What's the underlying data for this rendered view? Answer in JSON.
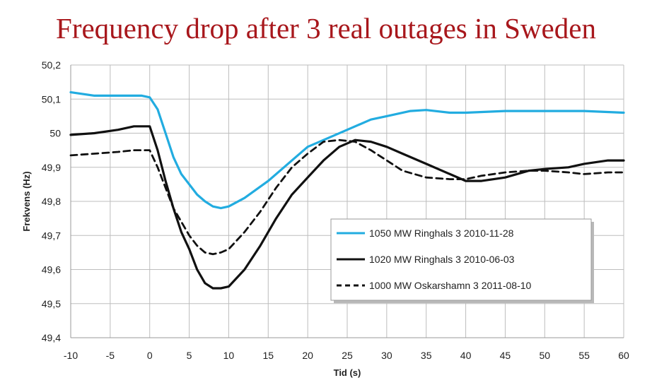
{
  "chart_data": {
    "type": "line",
    "title": "Frequency drop after 3 real outages in Sweden",
    "xlabel": "Tid (s)",
    "ylabel": "Frekvens (Hz)",
    "xlim": [
      -10,
      60
    ],
    "ylim": [
      49.4,
      50.2
    ],
    "x_ticks": [
      -10,
      -5,
      0,
      5,
      10,
      15,
      20,
      25,
      30,
      35,
      40,
      45,
      50,
      55,
      60
    ],
    "x_tick_labels": [
      "-10",
      "-5",
      "0",
      "5",
      "10",
      "15",
      "20",
      "25",
      "30",
      "35",
      "40",
      "45",
      "50",
      "55",
      "60"
    ],
    "y_ticks": [
      49.4,
      49.5,
      49.6,
      49.7,
      49.8,
      49.9,
      50.0,
      50.1,
      50.2
    ],
    "y_tick_labels": [
      "49,4",
      "49,5",
      "49,6",
      "49,7",
      "49,8",
      "49,9",
      "50",
      "50,1",
      "50,2"
    ],
    "grid": true,
    "legend_position": "bottom-right",
    "series": [
      {
        "name": "1050 MW Ringhals 3 2010-11-28",
        "color": "#22ace0",
        "style": "solid",
        "points": [
          [
            -10,
            50.12
          ],
          [
            -7,
            50.11
          ],
          [
            -3,
            50.11
          ],
          [
            -1,
            50.11
          ],
          [
            0,
            50.105
          ],
          [
            1,
            50.07
          ],
          [
            2,
            50.0
          ],
          [
            3,
            49.93
          ],
          [
            4,
            49.88
          ],
          [
            5,
            49.85
          ],
          [
            6,
            49.82
          ],
          [
            7,
            49.8
          ],
          [
            8,
            49.785
          ],
          [
            9,
            49.78
          ],
          [
            10,
            49.785
          ],
          [
            12,
            49.81
          ],
          [
            15,
            49.86
          ],
          [
            18,
            49.92
          ],
          [
            20,
            49.96
          ],
          [
            22,
            49.98
          ],
          [
            25,
            50.01
          ],
          [
            28,
            50.04
          ],
          [
            30,
            50.05
          ],
          [
            33,
            50.065
          ],
          [
            35,
            50.068
          ],
          [
            38,
            50.06
          ],
          [
            40,
            50.06
          ],
          [
            45,
            50.065
          ],
          [
            50,
            50.065
          ],
          [
            55,
            50.065
          ],
          [
            60,
            50.06
          ]
        ]
      },
      {
        "name": "1020 MW Ringhals 3 2010-06-03",
        "color": "#111111",
        "style": "solid",
        "points": [
          [
            -10,
            49.995
          ],
          [
            -7,
            50.0
          ],
          [
            -4,
            50.01
          ],
          [
            -2,
            50.02
          ],
          [
            0,
            50.02
          ],
          [
            1,
            49.95
          ],
          [
            2,
            49.86
          ],
          [
            3,
            49.78
          ],
          [
            4,
            49.71
          ],
          [
            5,
            49.66
          ],
          [
            6,
            49.6
          ],
          [
            7,
            49.56
          ],
          [
            8,
            49.545
          ],
          [
            9,
            49.545
          ],
          [
            10,
            49.55
          ],
          [
            12,
            49.6
          ],
          [
            14,
            49.67
          ],
          [
            16,
            49.75
          ],
          [
            18,
            49.82
          ],
          [
            20,
            49.87
          ],
          [
            22,
            49.92
          ],
          [
            24,
            49.96
          ],
          [
            26,
            49.98
          ],
          [
            28,
            49.975
          ],
          [
            30,
            49.96
          ],
          [
            32,
            49.94
          ],
          [
            35,
            49.91
          ],
          [
            38,
            49.88
          ],
          [
            40,
            49.86
          ],
          [
            42,
            49.86
          ],
          [
            45,
            49.87
          ],
          [
            48,
            49.89
          ],
          [
            50,
            49.895
          ],
          [
            53,
            49.9
          ],
          [
            55,
            49.91
          ],
          [
            58,
            49.92
          ],
          [
            60,
            49.92
          ]
        ]
      },
      {
        "name": "1000 MW Oskarshamn 3 2011-08-10",
        "color": "#111111",
        "style": "dashed",
        "points": [
          [
            -10,
            49.935
          ],
          [
            -7,
            49.94
          ],
          [
            -4,
            49.945
          ],
          [
            -2,
            49.95
          ],
          [
            0,
            49.95
          ],
          [
            1,
            49.9
          ],
          [
            2,
            49.84
          ],
          [
            3,
            49.78
          ],
          [
            4,
            49.74
          ],
          [
            5,
            49.7
          ],
          [
            6,
            49.67
          ],
          [
            7,
            49.65
          ],
          [
            8,
            49.645
          ],
          [
            9,
            49.65
          ],
          [
            10,
            49.66
          ],
          [
            12,
            49.71
          ],
          [
            14,
            49.77
          ],
          [
            16,
            49.84
          ],
          [
            18,
            49.9
          ],
          [
            20,
            49.94
          ],
          [
            22,
            49.975
          ],
          [
            24,
            49.98
          ],
          [
            26,
            49.975
          ],
          [
            28,
            49.95
          ],
          [
            30,
            49.92
          ],
          [
            32,
            49.89
          ],
          [
            35,
            49.87
          ],
          [
            38,
            49.865
          ],
          [
            40,
            49.865
          ],
          [
            42,
            49.875
          ],
          [
            45,
            49.885
          ],
          [
            48,
            49.89
          ],
          [
            50,
            49.89
          ],
          [
            53,
            49.885
          ],
          [
            55,
            49.88
          ],
          [
            58,
            49.885
          ],
          [
            60,
            49.885
          ]
        ]
      }
    ]
  }
}
